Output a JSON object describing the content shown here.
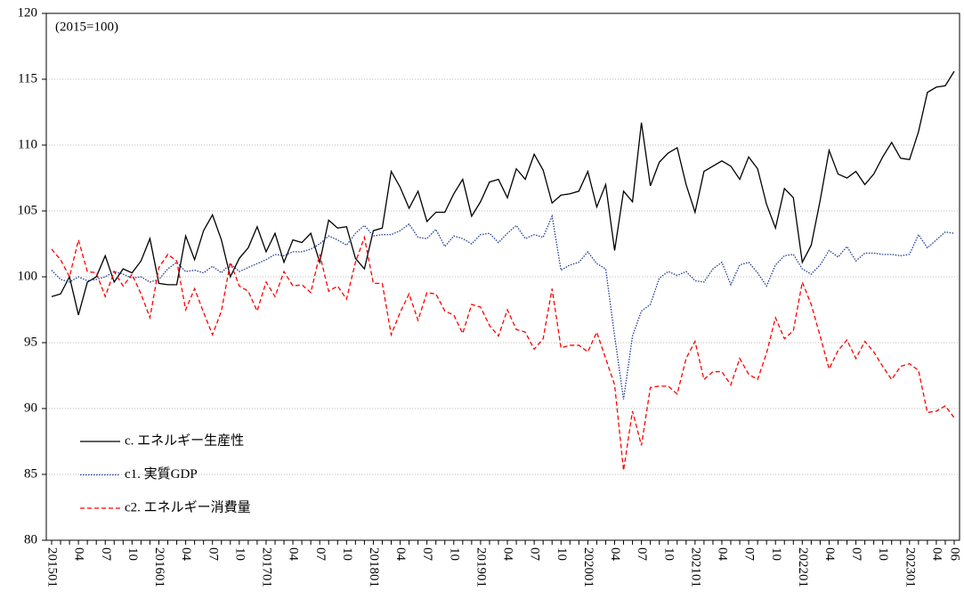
{
  "chart_data": {
    "type": "line",
    "annotation": "(2015=100)",
    "categories": [
      "201501",
      null,
      null,
      "04",
      null,
      null,
      "07",
      null,
      null,
      "10",
      null,
      null,
      "201601",
      null,
      null,
      "04",
      null,
      null,
      "07",
      null,
      null,
      "10",
      null,
      null,
      "201701",
      null,
      null,
      "04",
      null,
      null,
      "07",
      null,
      null,
      "10",
      null,
      null,
      "201801",
      null,
      null,
      "04",
      null,
      null,
      "07",
      null,
      null,
      "10",
      null,
      null,
      "201901",
      null,
      null,
      "04",
      null,
      null,
      "07",
      null,
      null,
      "10",
      null,
      null,
      "202001",
      null,
      null,
      "04",
      null,
      null,
      "07",
      null,
      null,
      "10",
      null,
      null,
      "202101",
      null,
      null,
      "04",
      null,
      null,
      "07",
      null,
      null,
      "10",
      null,
      null,
      "202201",
      null,
      null,
      "04",
      null,
      null,
      "07",
      null,
      null,
      "10",
      null,
      null,
      "202301",
      null,
      null,
      "04",
      null,
      "06"
    ],
    "ylim": [
      80,
      120
    ],
    "yticks": [
      80,
      85,
      90,
      95,
      100,
      105,
      110,
      115,
      120
    ],
    "grid": true,
    "series": [
      {
        "name": "c. エネルギー生産性",
        "color": "#000000",
        "dash": "none",
        "values": [
          98.5,
          98.7,
          100.0,
          97.1,
          99.6,
          100.0,
          101.6,
          99.6,
          100.6,
          100.3,
          101.2,
          102.9,
          99.5,
          99.4,
          99.4,
          103.1,
          101.3,
          103.5,
          104.7,
          102.8,
          100.0,
          101.4,
          102.2,
          103.8,
          101.9,
          103.3,
          101.1,
          102.8,
          102.6,
          103.3,
          101.1,
          104.3,
          103.7,
          103.8,
          101.4,
          100.6,
          103.5,
          103.7,
          108.0,
          106.8,
          105.2,
          106.5,
          104.2,
          104.9,
          104.9,
          106.3,
          107.4,
          104.6,
          105.7,
          107.2,
          107.4,
          106.0,
          108.2,
          107.4,
          109.3,
          108.1,
          105.6,
          106.2,
          106.3,
          106.5,
          108.0,
          105.3,
          107.0,
          102.0,
          106.5,
          105.7,
          111.7,
          106.9,
          108.7,
          109.4,
          109.8,
          107.0,
          104.9,
          108.0,
          108.4,
          108.8,
          108.4,
          107.4,
          109.1,
          108.2,
          105.5,
          103.7,
          106.7,
          106.0,
          101.1,
          102.4,
          105.8,
          109.6,
          107.8,
          107.5,
          108.0,
          107.0,
          107.8,
          109.1,
          110.2,
          109.0,
          108.9,
          111.0,
          114.0,
          114.4,
          114.5,
          115.6
        ]
      },
      {
        "name": "c1. 実質GDP",
        "color": "#1f3a93",
        "dash": "1.5 1.5",
        "values": [
          100.5,
          99.8,
          99.6,
          100.0,
          99.7,
          99.8,
          100.0,
          100.4,
          100.2,
          99.9,
          100.0,
          99.6,
          99.8,
          100.6,
          101.1,
          100.4,
          100.5,
          100.3,
          100.8,
          100.3,
          101.0,
          100.4,
          100.7,
          101.0,
          101.3,
          101.7,
          101.6,
          101.9,
          101.9,
          102.1,
          102.5,
          103.1,
          102.8,
          102.4,
          103.3,
          103.9,
          103.1,
          103.2,
          103.2,
          103.5,
          104.0,
          103.0,
          102.9,
          103.6,
          102.3,
          103.1,
          102.9,
          102.5,
          103.2,
          103.3,
          102.6,
          103.3,
          103.9,
          102.9,
          103.2,
          103.0,
          104.6,
          100.5,
          100.9,
          101.1,
          101.9,
          101.0,
          100.6,
          95.5,
          90.7,
          95.5,
          97.4,
          97.9,
          99.9,
          100.4,
          100.1,
          100.4,
          99.7,
          99.6,
          100.6,
          101.1,
          99.4,
          100.9,
          101.1,
          100.3,
          99.3,
          100.9,
          101.6,
          101.7,
          100.6,
          100.2,
          100.9,
          102.0,
          101.5,
          102.3,
          101.2,
          101.8,
          101.8,
          101.7,
          101.7,
          101.6,
          101.7,
          103.2,
          102.2,
          102.8,
          103.4,
          103.3
        ]
      },
      {
        "name": "c2. エネルギー消費量",
        "color": "#ff0000",
        "dash": "5 3",
        "values": [
          102.1,
          101.3,
          100.0,
          102.8,
          100.4,
          100.3,
          98.5,
          100.4,
          99.3,
          100.2,
          98.7,
          96.9,
          100.7,
          101.7,
          101.2,
          97.5,
          99.1,
          97.3,
          95.6,
          97.4,
          101.1,
          99.3,
          98.9,
          97.4,
          99.6,
          98.5,
          100.4,
          99.3,
          99.4,
          98.8,
          101.7,
          98.9,
          99.3,
          98.3,
          101.1,
          103.0,
          99.5,
          99.5,
          95.6,
          97.3,
          98.7,
          96.7,
          98.8,
          98.7,
          97.4,
          97.1,
          95.7,
          97.9,
          97.7,
          96.3,
          95.5,
          97.5,
          96.0,
          95.8,
          94.5,
          95.3,
          99.1,
          94.6,
          94.8,
          94.8,
          94.3,
          95.8,
          93.8,
          91.8,
          85.3,
          89.8,
          87.2,
          91.6,
          91.7,
          91.7,
          91.1,
          93.8,
          95.1,
          92.2,
          92.8,
          92.8,
          91.8,
          93.8,
          92.6,
          92.2,
          94.2,
          96.9,
          95.3,
          95.9,
          99.6,
          97.9,
          95.5,
          93.0,
          94.4,
          95.2,
          93.8,
          95.1,
          94.3,
          93.2,
          92.2,
          93.2,
          93.4,
          92.9,
          89.7,
          89.8,
          90.2,
          89.3
        ]
      }
    ]
  }
}
